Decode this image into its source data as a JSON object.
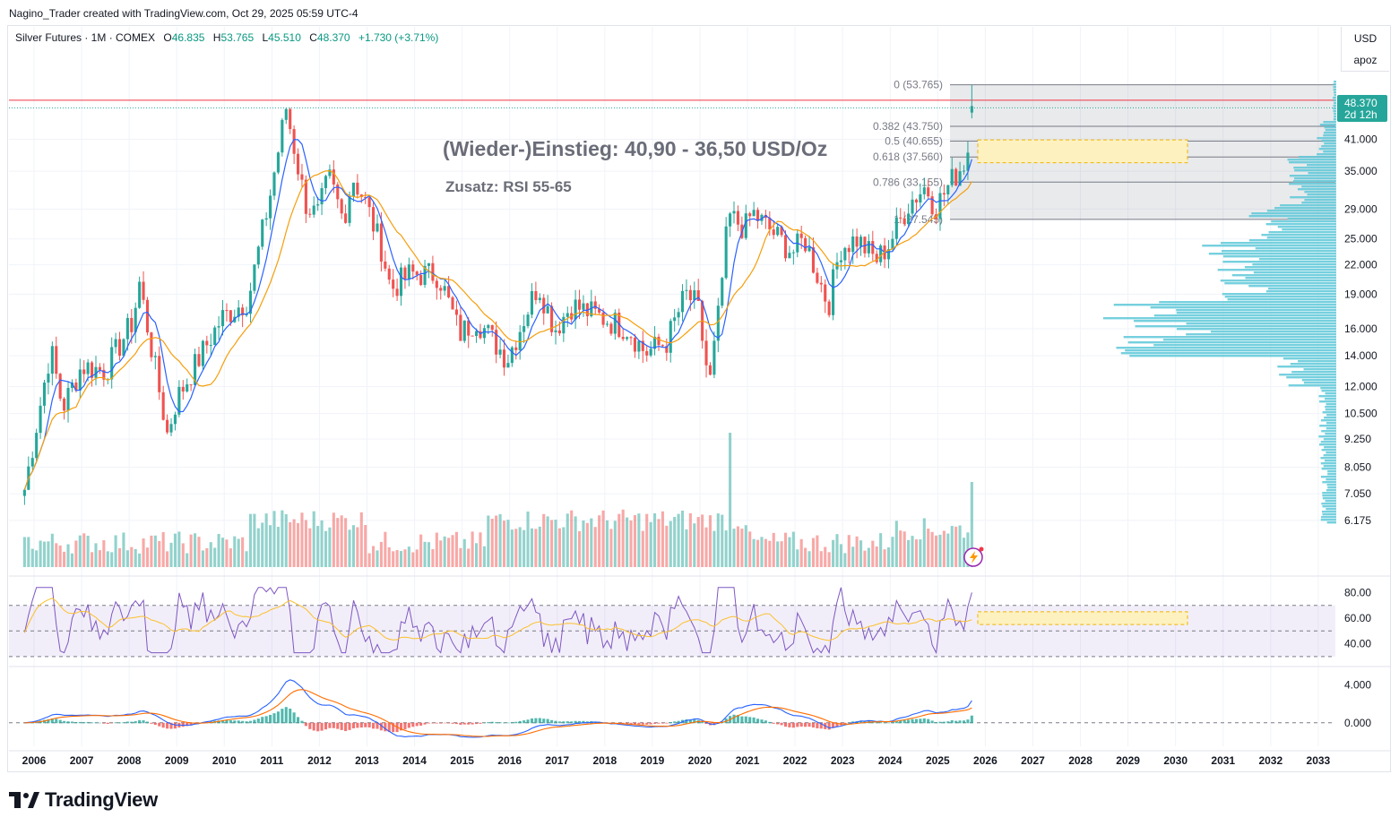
{
  "header": {
    "attribution": "Nagino_Trader created with TradingView.com, Oct 29, 2025 05:59 UTC-4"
  },
  "legend": {
    "symbol": "Silver Futures · 1M · COMEX",
    "o_label": "O",
    "o": "46.835",
    "h_label": "H",
    "h": "53.765",
    "l_label": "L",
    "l": "45.510",
    "c_label": "C",
    "c": "48.370",
    "change": "+1.730 (+3.71%)"
  },
  "scale": {
    "currency": "USD",
    "mode": "apoz"
  },
  "price_tag": {
    "price": "48.370",
    "countdown": "2d 12h"
  },
  "annotations": {
    "entry": "(Wieder-)Einstieg: 40,90 - 36,50 USD/Oz",
    "extra": "Zusatz: RSI 55-65"
  },
  "brand": {
    "name": "TradingView"
  },
  "colors": {
    "up": "#26a69a",
    "down": "#ef5350",
    "ma_fast": "#2962ff",
    "ma_slow": "#f59e0b",
    "rsi_line": "#7e57c2",
    "rsi_ma": "#fbc02d",
    "volume_profile": "#5ec8d8",
    "zone_fill": "#fdf1bf",
    "zone_border": "#f0b400",
    "resistance": "#f23645"
  },
  "chart_data": [
    {
      "type": "candlestick",
      "title": "Silver Futures · 1M · COMEX",
      "y_scale": "log",
      "ylim": [
        5.8,
        60
      ],
      "y_ticks": [
        "6.175",
        "7.050",
        "8.050",
        "9.250",
        "10.500",
        "12.000",
        "14.000",
        "16.000",
        "19.000",
        "22.000",
        "25.000",
        "29.000",
        "35.000",
        "41.000"
      ],
      "x_ticks": [
        "2006",
        "2007",
        "2008",
        "2009",
        "2010",
        "2011",
        "2012",
        "2013",
        "2014",
        "2015",
        "2016",
        "2017",
        "2018",
        "2019",
        "2020",
        "2021",
        "2022",
        "2023",
        "2024",
        "2025",
        "2026",
        "2027",
        "2028",
        "2029",
        "2030",
        "2031",
        "2032",
        "2033"
      ],
      "yearly_close_approx": [
        {
          "year": "2006",
          "value": 12.9
        },
        {
          "year": "2007",
          "value": 14.8
        },
        {
          "year": "2008",
          "value": 11.3
        },
        {
          "year": "2009",
          "value": 16.9
        },
        {
          "year": "2010",
          "value": 30.6
        },
        {
          "year": "2011",
          "value": 27.9
        },
        {
          "year": "2012",
          "value": 30.3
        },
        {
          "year": "2013",
          "value": 19.5
        },
        {
          "year": "2014",
          "value": 15.6
        },
        {
          "year": "2015",
          "value": 13.8
        },
        {
          "year": "2016",
          "value": 16.0
        },
        {
          "year": "2017",
          "value": 16.9
        },
        {
          "year": "2018",
          "value": 15.5
        },
        {
          "year": "2019",
          "value": 17.9
        },
        {
          "year": "2020",
          "value": 26.4
        },
        {
          "year": "2021",
          "value": 23.4
        },
        {
          "year": "2022",
          "value": 24.0
        },
        {
          "year": "2023",
          "value": 24.1
        },
        {
          "year": "2024",
          "value": 29.2
        },
        {
          "year": "2025",
          "value": 48.37
        }
      ],
      "fibonacci": [
        {
          "level": "0",
          "price": 53.765,
          "label": "0 (53.765)"
        },
        {
          "level": "0.382",
          "price": 43.75,
          "label": "0.382 (43.750)"
        },
        {
          "level": "0.5",
          "price": 40.655,
          "label": "0.5 (40.655)"
        },
        {
          "level": "0.618",
          "price": 37.56,
          "label": "0.618 (37.560)"
        },
        {
          "level": "0.786",
          "price": 33.155,
          "label": "0.786 (33.155)"
        },
        {
          "level": "1",
          "price": 27.545,
          "label": "1 (27.545)"
        }
      ],
      "entry_zone": [
        36.5,
        40.9
      ],
      "resistance_price": 49.8,
      "last_price": 48.37
    },
    {
      "type": "line",
      "title": "RSI",
      "ylim": [
        25,
        88
      ],
      "y_ticks": [
        "40.00",
        "60.00",
        "80.00"
      ],
      "bands": [
        30,
        50,
        70
      ],
      "highlight_zone": [
        55,
        65
      ]
    },
    {
      "type": "line",
      "title": "MACD",
      "ylim": [
        -2,
        6
      ],
      "y_ticks": [
        "0.000",
        "4.000"
      ]
    }
  ]
}
